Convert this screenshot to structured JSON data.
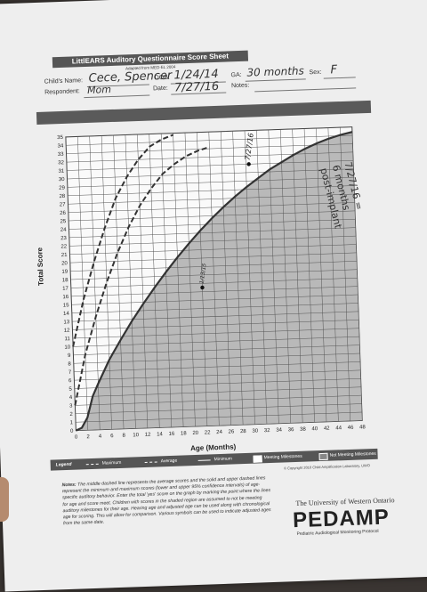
{
  "header": {
    "title": "LittlEARS Auditory Questionnaire Score Sheet",
    "subtitle": "Adapted from MED-EL 2004",
    "fields": {
      "childs_name_label": "Child's Name:",
      "childs_name": "Cece, Spencer",
      "dob_label": "DOB:",
      "dob": "1/24/14",
      "ga_label": "GA:",
      "ga": "30 months",
      "sex_label": "Sex:",
      "sex": "F",
      "respondent_label": "Respondent:",
      "respondent": "Mom",
      "date_label": "Date:",
      "date": "7/27/16",
      "notes_label": "Notes:"
    }
  },
  "chart_data": {
    "type": "line",
    "xlabel": "Age (Months)",
    "ylabel": "Total Score",
    "xlim": [
      0,
      48
    ],
    "ylim": [
      0,
      35
    ],
    "xticks": [
      0,
      2,
      4,
      6,
      8,
      10,
      12,
      14,
      16,
      18,
      20,
      22,
      24,
      26,
      28,
      30,
      32,
      34,
      36,
      38,
      40,
      42,
      44,
      46,
      48
    ],
    "yticks": [
      0,
      1,
      2,
      3,
      4,
      5,
      6,
      7,
      8,
      9,
      10,
      11,
      12,
      13,
      14,
      15,
      16,
      17,
      18,
      19,
      20,
      21,
      22,
      23,
      24,
      25,
      26,
      27,
      28,
      29,
      30,
      31,
      32,
      33,
      34,
      35
    ],
    "grid": true,
    "series": [
      {
        "name": "Minimum",
        "style": "solid",
        "x": [
          0,
          1,
          2,
          3,
          4,
          6,
          8,
          10,
          12,
          14,
          16,
          18,
          20,
          22,
          24,
          26,
          28,
          30,
          32,
          34,
          36,
          38,
          40,
          42,
          44,
          46,
          48
        ],
        "y": [
          0,
          0.3,
          1.5,
          4,
          5.5,
          8.3,
          10.6,
          12.8,
          14.8,
          16.7,
          18.5,
          20.2,
          21.8,
          23.3,
          24.7,
          26,
          27.2,
          28.3,
          29.3,
          30.3,
          31.1,
          31.9,
          32.6,
          33.2,
          33.7,
          34.1,
          34.4
        ]
      },
      {
        "name": "Average",
        "style": "dashed",
        "x": [
          0,
          2,
          4,
          6,
          8,
          10,
          12,
          14,
          16,
          18,
          20,
          22,
          24
        ],
        "y": [
          3,
          9,
          13.5,
          17.5,
          21,
          24,
          26.5,
          28.5,
          30.2,
          31.3,
          32.2,
          32.8,
          33.2
        ]
      },
      {
        "name": "Maximum",
        "style": "dashed",
        "x": [
          0,
          2,
          4,
          6,
          8,
          10,
          12,
          14,
          16,
          18
        ],
        "y": [
          10,
          15.5,
          20,
          24,
          27.5,
          30,
          32,
          33.5,
          34.3,
          34.8
        ]
      }
    ],
    "points": [
      {
        "x": 22,
        "y": 16.5,
        "label": "1/13/15"
      },
      {
        "x": 30.5,
        "y": 31,
        "label": "7/27/16"
      }
    ]
  },
  "legend": {
    "title": "Legend",
    "maximum": "Maximum",
    "average": "Average",
    "minimum": "Minimum",
    "meeting": "Meeting Milestones",
    "not_meeting": "Not Meeting Milestones"
  },
  "copyright": "© Copyright 2010 Child Amplification Laboratory, UWO",
  "notes": {
    "label": "Notes:",
    "text": "The middle dashed line represents the average scores and the solid and upper dashed lines represent the minimum and maximum scores (lower and upper 95% confidence intervals) of age-specific auditory behavior. Enter the total 'yes' score on the graph by marking the point where the lines for age and score meet. Children with scores in the shaded region are assumed to not be meeting auditory milestones for their age. Hearing age and adjusted age can be used along with chronological age for scoring. This will allow for comparison. Various symbols can be used to indicate adjusted ages from the same date."
  },
  "footer": {
    "university": "The University of Western Ontario",
    "logo": "PEDAMP",
    "logo_sub": "Pediatric Audiological Monitoring Protocol"
  },
  "annotation": {
    "line1": "7/27/16 =",
    "line2": "6 months",
    "line3": "post-implant"
  }
}
